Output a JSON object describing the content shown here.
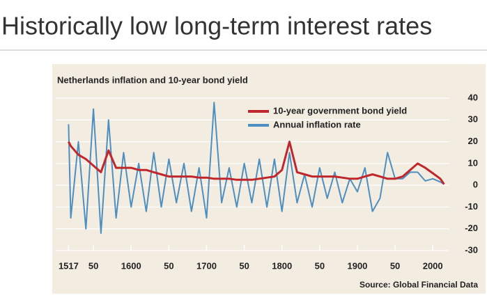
{
  "slide_title": "Historically low long-term interest rates",
  "chart_data": {
    "type": "line",
    "title": "Netherlands inflation and 10-year bond yield",
    "source": "Source: Global Financial Data",
    "x": [
      1517,
      1520,
      1530,
      1540,
      1550,
      1560,
      1570,
      1580,
      1590,
      1600,
      1610,
      1620,
      1630,
      1640,
      1650,
      1660,
      1670,
      1680,
      1690,
      1700,
      1710,
      1720,
      1730,
      1740,
      1750,
      1760,
      1770,
      1780,
      1790,
      1800,
      1810,
      1820,
      1830,
      1840,
      1850,
      1860,
      1870,
      1880,
      1890,
      1900,
      1910,
      1920,
      1930,
      1940,
      1950,
      1960,
      1970,
      1980,
      1990,
      2000,
      2010,
      2015
    ],
    "series": [
      {
        "name": "10-year government bond yield",
        "color": "#c0272d",
        "width": 3,
        "values": [
          20,
          18,
          14,
          12,
          9,
          6,
          16,
          8,
          8,
          8,
          7,
          7,
          6,
          5,
          4,
          4,
          4,
          4,
          3.5,
          3.5,
          3,
          3,
          3,
          2.5,
          2.5,
          2.5,
          3,
          3.5,
          4,
          7,
          20,
          6,
          5,
          4,
          4,
          4,
          4,
          3.5,
          3,
          3,
          4,
          5,
          4,
          3,
          3,
          4,
          7,
          10,
          8,
          5.5,
          3,
          0.5
        ]
      },
      {
        "name": "Annual inflation rate",
        "color": "#4d8fc0",
        "width": 2,
        "values": [
          28,
          -15,
          20,
          -20,
          35,
          -22,
          30,
          -15,
          15,
          -10,
          10,
          -12,
          15,
          -10,
          12,
          -8,
          10,
          -12,
          8,
          -15,
          38,
          -8,
          8,
          -10,
          10,
          -8,
          12,
          -10,
          12,
          -12,
          15,
          -8,
          5,
          -10,
          8,
          -6,
          6,
          -8,
          3,
          -3,
          8,
          -12,
          -6,
          15,
          3,
          3,
          6,
          6,
          2,
          3,
          1.5,
          0.5
        ]
      }
    ],
    "xlim": [
      1500,
      2022
    ],
    "xticks": [
      1517,
      {
        "value": 1550,
        "label": "50"
      },
      1600,
      {
        "value": 1650,
        "label": "50"
      },
      1700,
      {
        "value": 1750,
        "label": "50"
      },
      1800,
      {
        "value": 1850,
        "label": "50"
      },
      1900,
      {
        "value": 1950,
        "label": "50"
      },
      2000
    ],
    "ylim": [
      -30,
      40
    ],
    "yticks": [
      -30,
      -20,
      -10,
      0,
      10,
      20,
      30,
      40
    ],
    "grid": true
  }
}
